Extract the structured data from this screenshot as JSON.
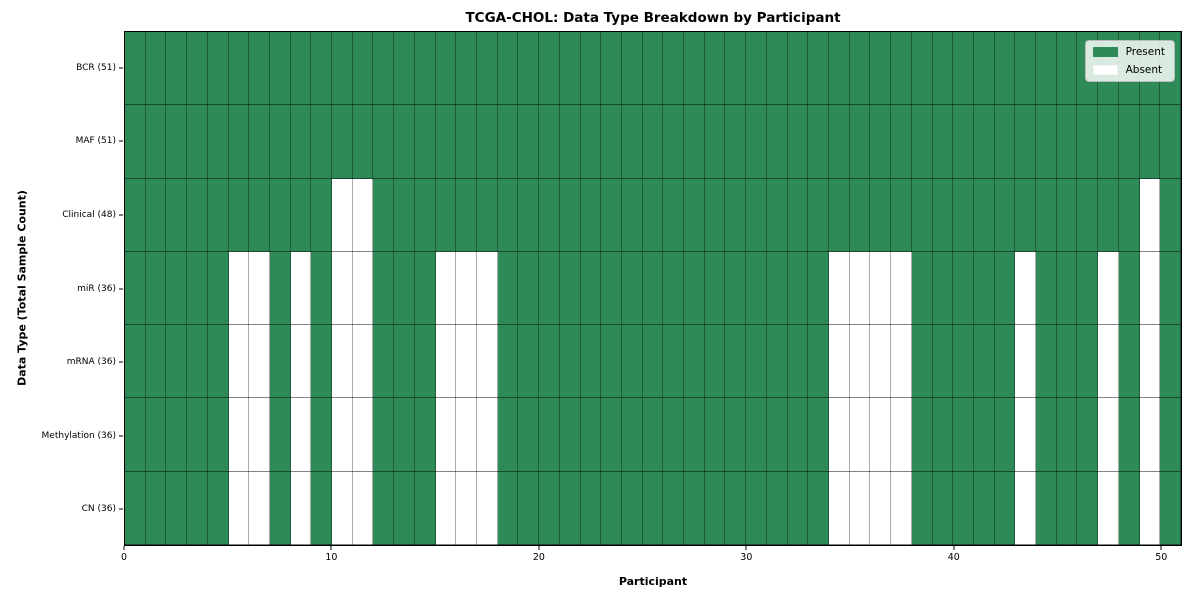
{
  "chart_data": {
    "type": "heatmap",
    "title": "TCGA-CHOL: Data Type Breakdown by Participant",
    "xlabel": "Participant",
    "ylabel": "Data Type (Total Sample Count)",
    "x_ticks": [
      0,
      10,
      20,
      30,
      40,
      50
    ],
    "x_range": [
      0,
      51
    ],
    "n_participants": 51,
    "grid": true,
    "legend_position": "upper right",
    "legend": {
      "items": [
        {
          "label": "Present",
          "color": "#2e8b57"
        },
        {
          "label": "Absent",
          "color": "#ffffff"
        }
      ]
    },
    "colors": {
      "present": "#2e8b57",
      "absent": "#ffffff",
      "spine": "#000000"
    },
    "rows": [
      {
        "label": "BCR (51)",
        "data_type": "BCR",
        "present_count": 51,
        "absent_participants": []
      },
      {
        "label": "MAF (51)",
        "data_type": "MAF",
        "present_count": 51,
        "absent_participants": []
      },
      {
        "label": "Clinical (48)",
        "data_type": "Clinical",
        "present_count": 48,
        "absent_participants": [
          10,
          11,
          49
        ]
      },
      {
        "label": "miR (36)",
        "data_type": "miR",
        "present_count": 36,
        "absent_participants": [
          5,
          6,
          8,
          10,
          11,
          15,
          16,
          17,
          34,
          35,
          36,
          37,
          43,
          47,
          49
        ]
      },
      {
        "label": "mRNA (36)",
        "data_type": "mRNA",
        "present_count": 36,
        "absent_participants": [
          5,
          6,
          8,
          10,
          11,
          15,
          16,
          17,
          34,
          35,
          36,
          37,
          43,
          47,
          49
        ]
      },
      {
        "label": "Methylation (36)",
        "data_type": "Methylation",
        "present_count": 36,
        "absent_participants": [
          5,
          6,
          8,
          10,
          11,
          15,
          16,
          17,
          34,
          35,
          36,
          37,
          43,
          47,
          49
        ]
      },
      {
        "label": "CN (36)",
        "data_type": "CN",
        "present_count": 36,
        "absent_participants": [
          5,
          6,
          8,
          10,
          11,
          15,
          16,
          17,
          34,
          35,
          36,
          37,
          43,
          47,
          49
        ]
      }
    ]
  }
}
